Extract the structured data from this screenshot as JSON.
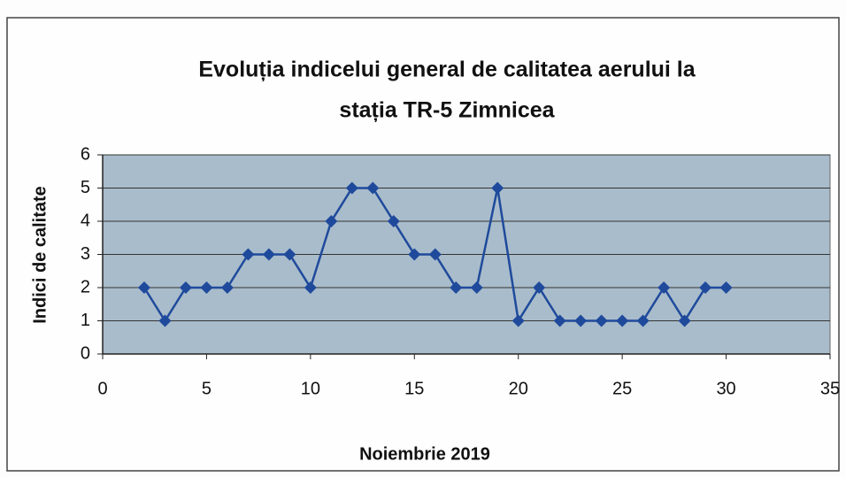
{
  "chart_data": {
    "type": "line",
    "title": [
      "Evoluția indicelui general de calitatea aerului la",
      "stația TR-5 Zimnicea"
    ],
    "x_label": "Noiembrie 2019",
    "y_label": "Indici de calitate",
    "x": [
      2,
      3,
      4,
      5,
      6,
      7,
      8,
      9,
      10,
      11,
      12,
      13,
      14,
      15,
      16,
      17,
      18,
      19,
      20,
      21,
      22,
      23,
      24,
      25,
      26,
      27,
      28,
      29,
      30
    ],
    "values": [
      2,
      1,
      2,
      2,
      2,
      3,
      3,
      3,
      2,
      4,
      5,
      5,
      4,
      3,
      3,
      2,
      2,
      5,
      1,
      2,
      1,
      1,
      1,
      1,
      1,
      2,
      1,
      2,
      2
    ],
    "color": "#1f4a9c",
    "plot_background": "#a9bccb",
    "xlim": [
      0,
      35
    ],
    "xticks": [
      0,
      5,
      10,
      15,
      20,
      25,
      30,
      35
    ],
    "ylim": [
      0,
      6
    ],
    "yticks": [
      0,
      1,
      2,
      3,
      4,
      5,
      6
    ],
    "grid": true
  }
}
